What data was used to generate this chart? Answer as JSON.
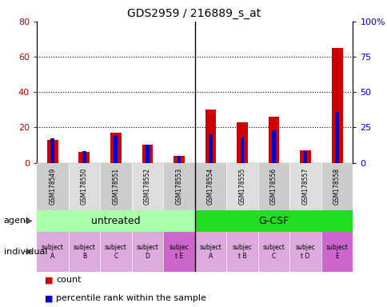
{
  "title": "GDS2959 / 216889_s_at",
  "samples": [
    "GSM178549",
    "GSM178550",
    "GSM178551",
    "GSM178552",
    "GSM178553",
    "GSM178554",
    "GSM178555",
    "GSM178556",
    "GSM178557",
    "GSM178558"
  ],
  "count_values": [
    13,
    6,
    17,
    10,
    4,
    30,
    23,
    26,
    7,
    65
  ],
  "percentile_values": [
    17,
    8,
    19,
    13,
    5,
    20,
    18,
    23,
    8,
    36
  ],
  "ylim_left": [
    0,
    80
  ],
  "ylim_right": [
    0,
    100
  ],
  "yticks_left": [
    0,
    20,
    40,
    60,
    80
  ],
  "ytick_labels_left": [
    "0",
    "20",
    "40",
    "60",
    "80"
  ],
  "yticks_right": [
    0,
    25,
    50,
    75,
    100
  ],
  "ytick_labels_right": [
    "0",
    "25",
    "50",
    "75",
    "100%"
  ],
  "agent_groups": [
    {
      "label": "untreated",
      "start": 0,
      "end": 5,
      "color": "#aaffaa"
    },
    {
      "label": "G-CSF",
      "start": 5,
      "end": 10,
      "color": "#22dd22"
    }
  ],
  "individual_labels": [
    "subject\nA",
    "subject\nB",
    "subject\nC",
    "subject\nD",
    "subjec\nt E",
    "subject\nA",
    "subjec\nt B",
    "subject\nC",
    "subjec\nt D",
    "subject\nE"
  ],
  "individual_highlight": [
    4,
    9
  ],
  "individual_colors_normal": "#ddaadd",
  "individual_colors_highlight": "#cc66cc",
  "count_color": "#cc0000",
  "percentile_color": "#0000cc",
  "axis_label_color_left": "#cc0000",
  "axis_label_color_right": "#0000cc",
  "sample_col_colors": [
    "#cccccc",
    "#dddddd",
    "#cccccc",
    "#dddddd",
    "#cccccc",
    "#cccccc",
    "#dddddd",
    "#cccccc",
    "#dddddd",
    "#cccccc"
  ]
}
